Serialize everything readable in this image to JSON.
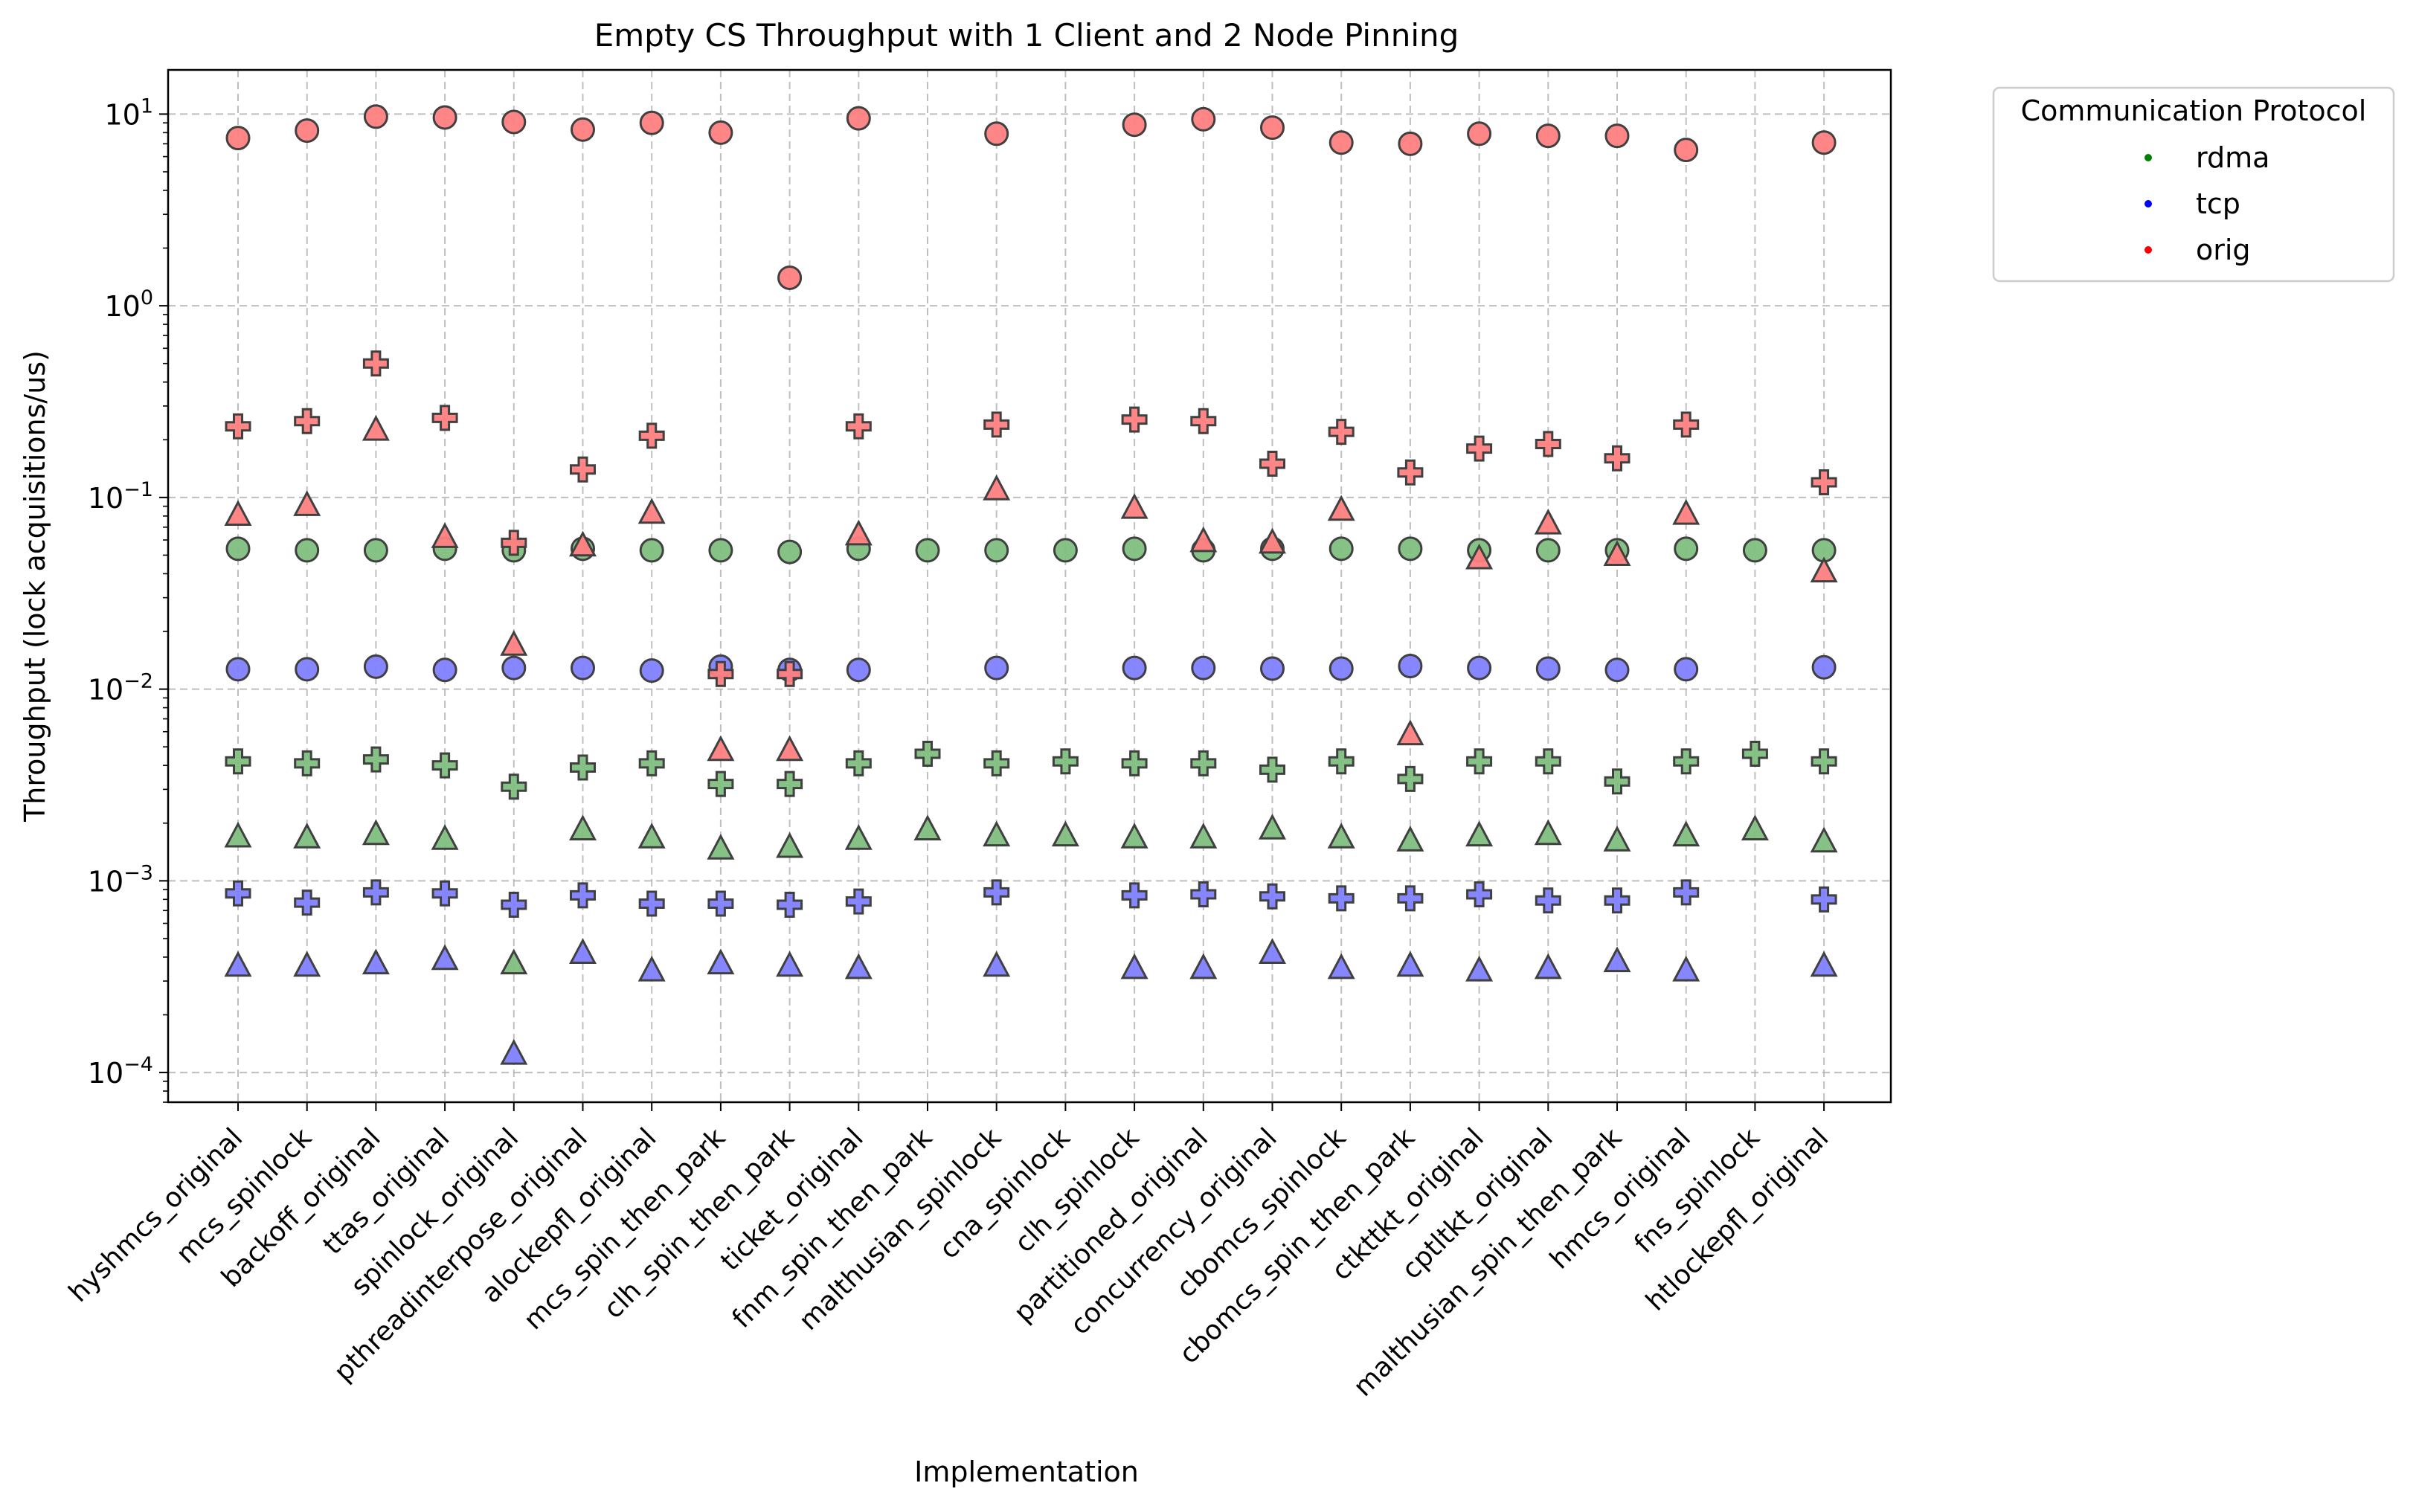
{
  "chart_data": {
    "type": "scatter",
    "title": "Empty CS Throughput with 1 Client and 2 Node Pinning",
    "xlabel": "Implementation",
    "ylabel": "Throughput (lock acquisitions/us)",
    "yscale": "log",
    "ylim": [
      7e-05,
      17
    ],
    "y_ticks": [
      {
        "value": 0.0001,
        "base": "10",
        "exp": "−4"
      },
      {
        "value": 0.001,
        "base": "10",
        "exp": "−3"
      },
      {
        "value": 0.01,
        "base": "10",
        "exp": "−2"
      },
      {
        "value": 0.1,
        "base": "10",
        "exp": "−1"
      },
      {
        "value": 1,
        "base": "10",
        "exp": "0"
      },
      {
        "value": 10,
        "base": "10",
        "exp": "1"
      }
    ],
    "grid": true,
    "legend": {
      "title": "Communication Protocol",
      "placement": "outside-top-right",
      "entries": [
        {
          "label": "rdma",
          "color": "#008000"
        },
        {
          "label": "tcp",
          "color": "#0000ff"
        },
        {
          "label": "orig",
          "color": "#ff0000"
        }
      ]
    },
    "marker_fill_colors": {
      "rdma": "#7fbf7f",
      "tcp": "#7f7fff",
      "orig": "#ff7f7f"
    },
    "categories": [
      "hyshmcs_original",
      "mcs_spinlock",
      "backoff_original",
      "ttas_original",
      "spinlock_original",
      "pthreadinterpose_original",
      "alockepfl_original",
      "mcs_spin_then_park",
      "clh_spin_then_park",
      "ticket_original",
      "fnm_spin_then_park",
      "malthusian_spinlock",
      "cna_spinlock",
      "clh_spinlock",
      "partitioned_original",
      "concurrency_original",
      "cbomcs_spinlock",
      "cbomcs_spin_then_park",
      "ctkttkt_original",
      "cptltkt_original",
      "malthusian_spin_then_park",
      "hmcs_original",
      "fns_spinlock",
      "htlockepfl_original"
    ],
    "series": [
      {
        "protocol": "rdma",
        "marker": "circle",
        "values": [
          0.054,
          0.053,
          0.053,
          0.054,
          0.053,
          0.054,
          0.053,
          0.053,
          0.052,
          0.054,
          0.053,
          0.053,
          0.053,
          0.054,
          0.053,
          0.054,
          0.054,
          0.054,
          0.053,
          0.053,
          0.053,
          0.054,
          0.053,
          0.053
        ]
      },
      {
        "protocol": "rdma",
        "marker": "plus",
        "values": [
          0.0042,
          0.0041,
          0.0043,
          0.004,
          0.0031,
          0.0039,
          0.0041,
          0.0032,
          0.0032,
          0.0041,
          0.0046,
          0.0041,
          0.0042,
          0.0041,
          0.0041,
          0.0038,
          0.0042,
          0.0034,
          0.0042,
          0.0042,
          0.0033,
          0.0042,
          0.0046,
          0.0042
        ]
      },
      {
        "protocol": "rdma",
        "marker": "triangle",
        "values": [
          0.0017,
          0.00168,
          0.00175,
          0.00165,
          0.00037,
          0.00185,
          0.00168,
          0.00147,
          0.0015,
          0.00165,
          0.00185,
          0.00172,
          0.00172,
          0.00168,
          0.00168,
          0.00187,
          0.00168,
          0.00162,
          0.00172,
          0.00175,
          0.00162,
          0.00172,
          0.00185,
          0.0016
        ]
      },
      {
        "protocol": "tcp",
        "marker": "circle",
        "values": [
          0.0127,
          0.0127,
          0.0131,
          0.0126,
          0.0129,
          0.0129,
          0.0125,
          0.0131,
          0.0126,
          0.0126,
          null,
          0.0129,
          null,
          0.0129,
          0.0129,
          0.0128,
          0.0128,
          0.0132,
          0.0129,
          0.0128,
          0.0126,
          0.0127,
          null,
          0.013
        ]
      },
      {
        "protocol": "tcp",
        "marker": "plus",
        "values": [
          0.00086,
          0.00077,
          0.00087,
          0.00086,
          0.00075,
          0.00084,
          0.00076,
          0.00076,
          0.00075,
          0.00078,
          null,
          0.00087,
          null,
          0.00084,
          0.00085,
          0.00083,
          0.00081,
          0.00081,
          0.00085,
          0.00079,
          0.00079,
          0.00087,
          null,
          0.0008
        ]
      },
      {
        "protocol": "tcp",
        "marker": "triangle",
        "values": [
          0.00036,
          0.00036,
          0.00037,
          0.00039,
          0.000125,
          0.00042,
          0.00034,
          0.00037,
          0.00036,
          0.00035,
          null,
          0.00036,
          null,
          0.00035,
          0.00035,
          0.00042,
          0.00035,
          0.00036,
          0.00034,
          0.00035,
          0.00038,
          0.00034,
          null,
          0.00036
        ]
      },
      {
        "protocol": "orig",
        "marker": "circle",
        "values": [
          7.5,
          8.2,
          9.7,
          9.6,
          9.1,
          8.3,
          9.0,
          8.0,
          1.4,
          9.5,
          null,
          7.9,
          null,
          8.8,
          9.4,
          8.5,
          7.1,
          7.0,
          7.9,
          7.7,
          7.7,
          6.5,
          null,
          7.1
        ]
      },
      {
        "protocol": "orig",
        "marker": "plus",
        "values": [
          0.235,
          0.25,
          0.5,
          0.26,
          0.058,
          0.14,
          0.21,
          0.012,
          0.012,
          0.235,
          null,
          0.24,
          null,
          0.255,
          0.25,
          0.15,
          0.22,
          0.135,
          0.18,
          0.19,
          0.16,
          0.24,
          null,
          0.12
        ]
      },
      {
        "protocol": "orig",
        "marker": "triangle",
        "values": [
          0.081,
          0.091,
          0.225,
          0.062,
          0.017,
          0.056,
          0.083,
          0.0048,
          0.0048,
          0.064,
          null,
          0.11,
          null,
          0.088,
          0.059,
          0.058,
          0.086,
          0.0058,
          0.048,
          0.073,
          0.05,
          0.082,
          null,
          0.041
        ]
      }
    ]
  }
}
